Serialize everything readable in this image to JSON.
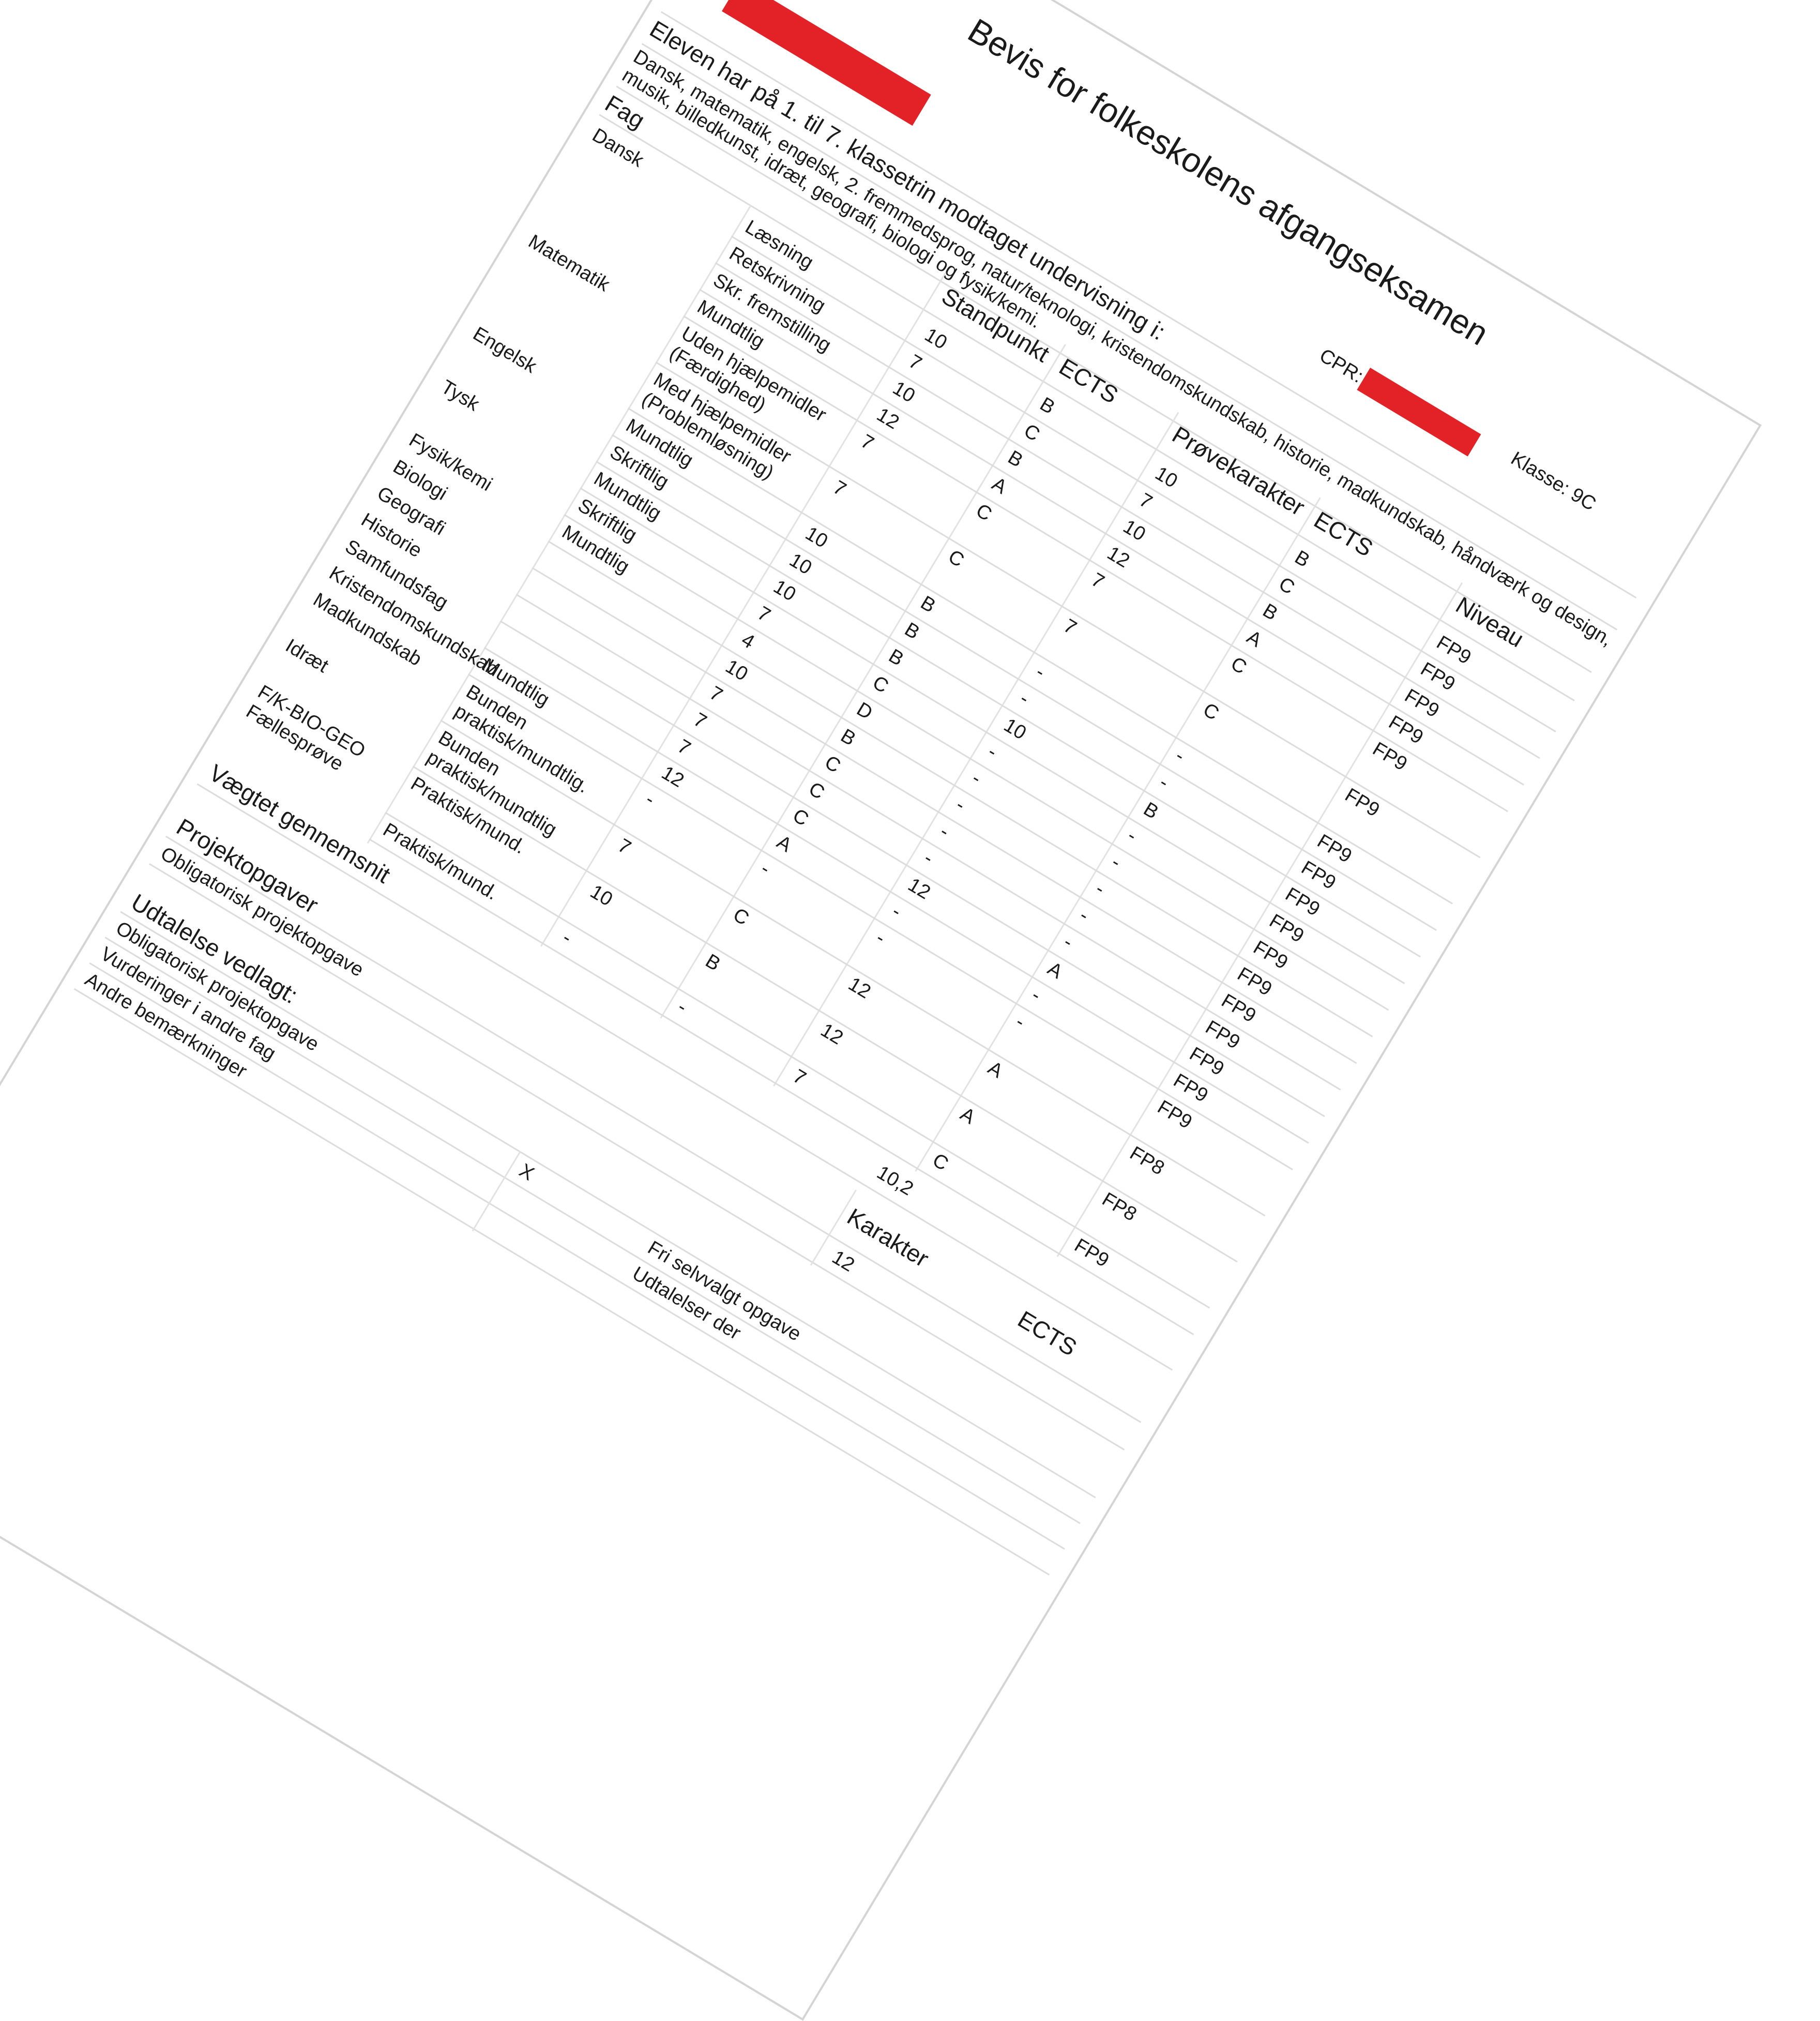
{
  "header": {
    "title": "Bevis for folkeskolens afgangseksamen",
    "name_label": ":",
    "cpr_label": "CPR:",
    "class_label": "Klasse: 9C",
    "redaction_color": "#e32227"
  },
  "intro": {
    "heading": "Eleven har på 1. til 7. klassetrin modtaget undervisning i:",
    "subjects_line1": "Dansk, matematik, engelsk, 2. fremmedsprog, natur/teknologi, kristendomskundskab, historie, madkundskab, håndværk og design,",
    "subjects_line2": "musik, billedkunst, idræt, geografi, biologi og fysik/kemi."
  },
  "table": {
    "columns": {
      "fag": "Fag",
      "standpunkt": "Standpunkt",
      "ects1": "ECTS",
      "proeve": "Prøvekarakter",
      "ects2": "ECTS",
      "niveau": "Niveau"
    },
    "rows": [
      {
        "fag": "Dansk",
        "form": "Læsning",
        "standpunkt": "10",
        "ects1": "B",
        "proeve": "10",
        "ects2": "B",
        "niveau": "FP9"
      },
      {
        "fag": "",
        "form": "Retskrivning",
        "standpunkt": "7",
        "ects1": "C",
        "proeve": "7",
        "ects2": "C",
        "niveau": "FP9"
      },
      {
        "fag": "",
        "form": "Skr. fremstilling",
        "standpunkt": "10",
        "ects1": "B",
        "proeve": "10",
        "ects2": "B",
        "niveau": "FP9"
      },
      {
        "fag": "",
        "form": "Mundtlig",
        "standpunkt": "12",
        "ects1": "A",
        "proeve": "12",
        "ects2": "A",
        "niveau": "FP9"
      },
      {
        "fag": "Matematik",
        "form": "Uden hjælpemidler\n(Færdighed)",
        "standpunkt": "7",
        "ects1": "C",
        "proeve": "7",
        "ects2": "C",
        "niveau": "FP9"
      },
      {
        "fag": "",
        "form": "Med hjælpemidler\n(Problemløsning)",
        "standpunkt": "7",
        "ects1": "C",
        "proeve": "7",
        "ects2": "C",
        "niveau": "FP9"
      },
      {
        "fag": "Engelsk",
        "form": "Mundtlig",
        "standpunkt": "10",
        "ects1": "B",
        "proeve": "-",
        "ects2": "-",
        "niveau": "FP9"
      },
      {
        "fag": "",
        "form": "Skriftlig",
        "standpunkt": "10",
        "ects1": "B",
        "proeve": "-",
        "ects2": "-",
        "niveau": "FP9"
      },
      {
        "fag": "Tysk",
        "form": "Mundtlig",
        "standpunkt": "10",
        "ects1": "B",
        "proeve": "10",
        "ects2": "B",
        "niveau": "FP9"
      },
      {
        "fag": "",
        "form": "Skriftlig",
        "standpunkt": "7",
        "ects1": "C",
        "proeve": "-",
        "ects2": "-",
        "niveau": "FP9"
      },
      {
        "fag": "Fysik/kemi",
        "form": "Mundtlig",
        "standpunkt": "4",
        "ects1": "D",
        "proeve": "-",
        "ects2": "-",
        "niveau": "FP9"
      },
      {
        "fag": "Biologi",
        "form": "",
        "standpunkt": "10",
        "ects1": "B",
        "proeve": "-",
        "ects2": "-",
        "niveau": "FP9"
      },
      {
        "fag": "Geografi",
        "form": "",
        "standpunkt": "7",
        "ects1": "C",
        "proeve": "-",
        "ects2": "-",
        "niveau": "FP9"
      },
      {
        "fag": "Historie",
        "form": "",
        "standpunkt": "7",
        "ects1": "C",
        "proeve": "-",
        "ects2": "-",
        "niveau": "FP9"
      },
      {
        "fag": "Samfundsfag",
        "form": "",
        "standpunkt": "7",
        "ects1": "C",
        "proeve": "12",
        "ects2": "A",
        "niveau": "FP9"
      },
      {
        "fag": "Kristendomskundskab",
        "form": "Mundtlig",
        "standpunkt": "12",
        "ects1": "A",
        "proeve": "-",
        "ects2": "-",
        "niveau": "FP9"
      },
      {
        "fag": "Madkundskab",
        "form": "Bunden\npraktisk/mundtlig.",
        "standpunkt": "-",
        "ects1": "-",
        "proeve": "-",
        "ects2": "-",
        "niveau": "FP9"
      },
      {
        "fag": "Idræt",
        "form": "Bunden\npraktisk/mundtlig",
        "standpunkt": "7",
        "ects1": "C",
        "proeve": "12",
        "ects2": "A",
        "niveau": "FP8"
      },
      {
        "fag": "F/K-BIO-GEO\nFællesprøve",
        "form": "Praktisk/mund.",
        "standpunkt": "10",
        "ects1": "B",
        "proeve": "12",
        "ects2": "A",
        "niveau": "FP8"
      },
      {
        "fag": "",
        "form": "Praktisk/mund.",
        "standpunkt": "-",
        "ects1": "-",
        "proeve": "7",
        "ects2": "C",
        "niveau": "FP9"
      }
    ],
    "weighted_average_label": "Vægtet gennemsnit",
    "weighted_average_value": "10,2"
  },
  "projects": {
    "heading": "Projektopgaver",
    "grade_header": "Karakter",
    "ects_header": "ECTS",
    "mandatory_label": "Obligatorisk projektopgave",
    "mandatory_grade": "12",
    "free_label": "Fri selvvalgt opgave"
  },
  "statements": {
    "heading": "Udtalelse vedlagt:",
    "items": [
      {
        "label": "Obligatorisk projektopgave",
        "mark": "X"
      },
      {
        "label": "Vurderinger i andre fag",
        "mark": ""
      },
      {
        "label": "Andre bemærkninger",
        "mark": ""
      }
    ],
    "other_label": "Udtalelser der"
  }
}
